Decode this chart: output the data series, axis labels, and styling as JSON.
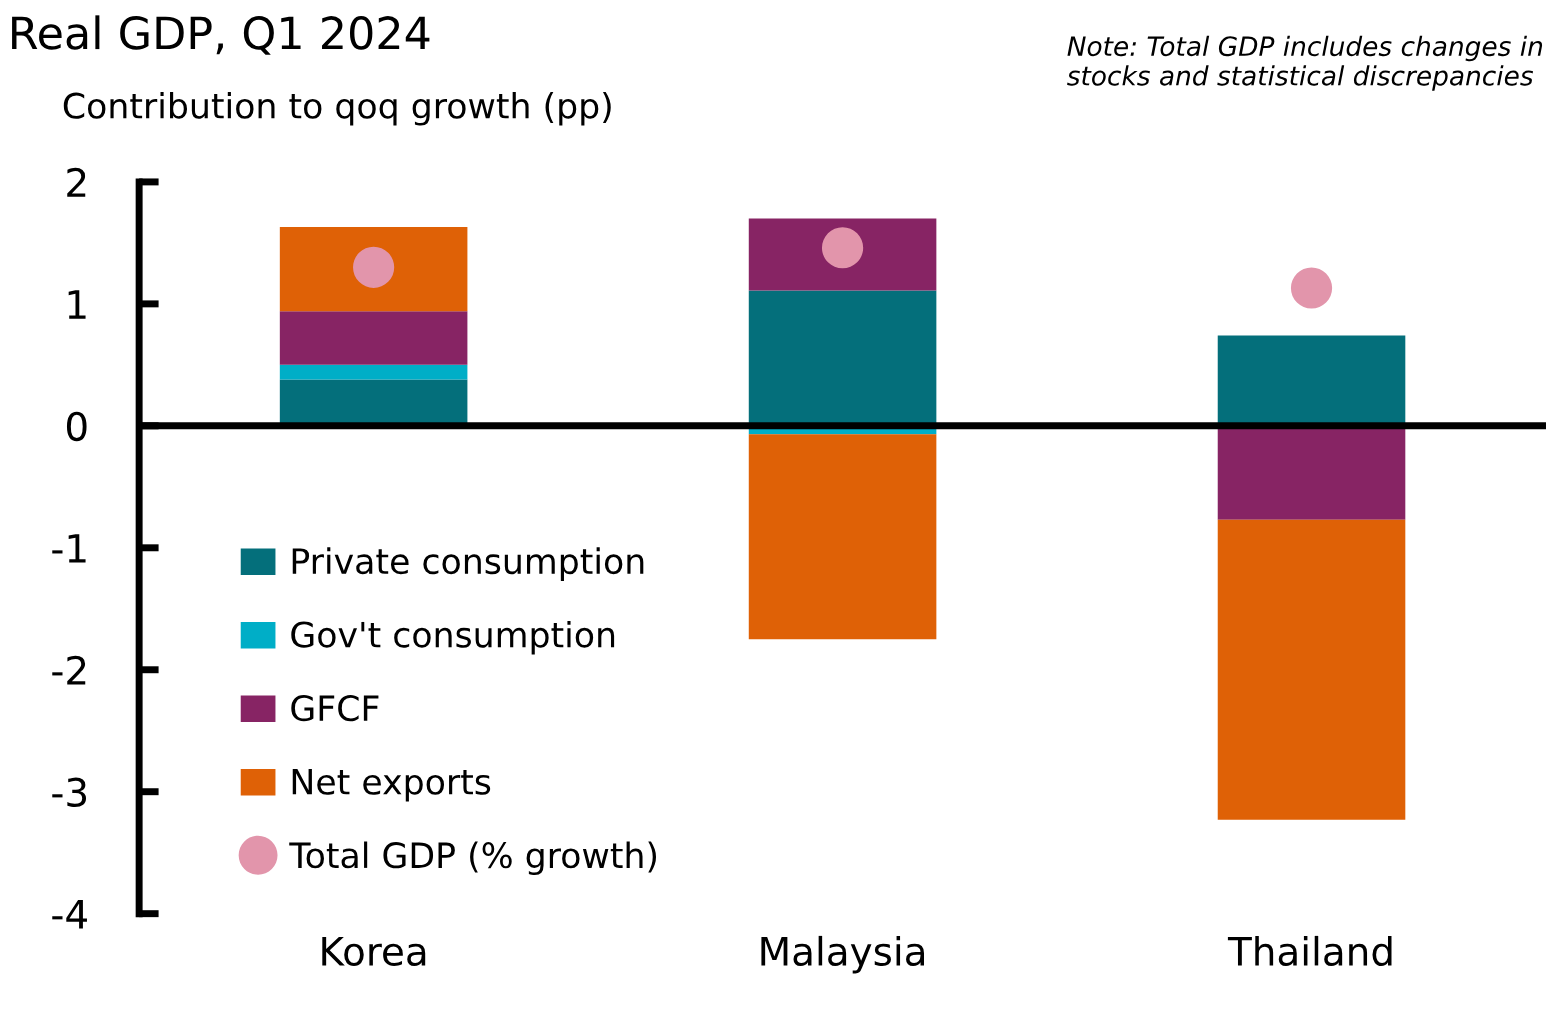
{
  "chart_data": {
    "type": "bar",
    "stacked": true,
    "title": "Real GDP, Q1 2024",
    "subtitle": "Contribution to qoq growth (pp)",
    "annotations": [
      "Note: Total GDP includes changes in stocks and statistical discrepancies"
    ],
    "categories": [
      "Korea",
      "Malaysia",
      "Thailand"
    ],
    "series": [
      {
        "name": "Private consumption",
        "color": "#046f7b",
        "values": [
          0.38,
          1.11,
          0.74
        ]
      },
      {
        "name": "Gov't consumption",
        "color": "#00aec7",
        "values": [
          0.12,
          -0.07,
          0
        ]
      },
      {
        "name": "GFCF",
        "color": "#872464",
        "values": [
          0.44,
          0.59,
          -0.77
        ]
      },
      {
        "name": "Net exports",
        "color": "#df6106",
        "values": [
          0.69,
          -1.68,
          -2.46
        ]
      },
      {
        "name": "Total GDP (% growth)",
        "type": "scatter",
        "marker": "circle",
        "color": "#e295ab",
        "values": [
          1.3,
          1.46,
          1.13
        ]
      }
    ],
    "ylim": [
      -4,
      2
    ],
    "yticks": [
      -4,
      -3,
      -2,
      -1,
      0,
      1,
      2
    ],
    "ref_lines": [
      {
        "axis": "y",
        "value": 0,
        "color": "#000000"
      }
    ],
    "grid": false,
    "legend": "bottom left"
  }
}
